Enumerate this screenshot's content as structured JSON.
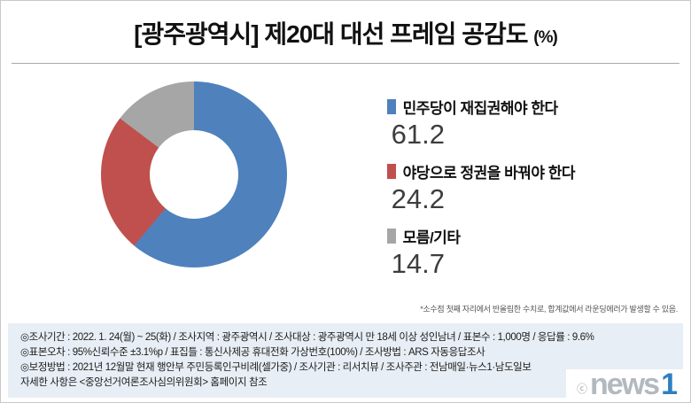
{
  "page": {
    "title": "[광주광역시] 제20대 대선 프레임 공감도",
    "title_unit": "(%)"
  },
  "chart_data": {
    "type": "pie",
    "donut": true,
    "title": "[광주광역시] 제20대 대선 프레임 공감도 (%)",
    "unit": "%",
    "start_angle_deg": 0,
    "direction": "clockwise",
    "legend_position": "right",
    "segments": [
      {
        "label": "민주당이 재집권해야 한다",
        "value": 61.2,
        "color": "#4f81bd"
      },
      {
        "label": "야당으로 정권을 바꿔야 한다",
        "value": 24.2,
        "color": "#c0504d"
      },
      {
        "label": "모름/기타",
        "value": 14.7,
        "color": "#a6a6a6"
      }
    ]
  },
  "footnote": "*소수점 첫째 자리에서 반올림한 수치로, 합계값에서 라운딩에러가 발생할 수 있음.",
  "survey_info": {
    "lines": [
      "◎조사기간 : 2022. 1. 24(월) ~ 25(화) / 조사지역 : 광주광역시 / 조사대상 : 광주광역시 만 18세 이상 성인남녀 / 표본수 : 1,000명 / 응답률 : 9.6%",
      "◎표본오차 : 95%신뢰수준 ±3.1%p / 표집틀 : 통신사제공 휴대전화 가상번호(100%) / 조사방법 : ARS 자동응답조사",
      "◎보정방법 : 2021년 12월말 현재 행안부 주민등록인구비례(셀가중) / 조사기관 : 리서치뷰 / 조사주관 : 전남매일·뉴스1·남도일보",
      "자세한 사항은 <중앙선거여론조사심의위원회> 홈페이지 참조"
    ]
  },
  "logo": {
    "copyright": "ⓒ",
    "news": "news",
    "one": "1"
  }
}
